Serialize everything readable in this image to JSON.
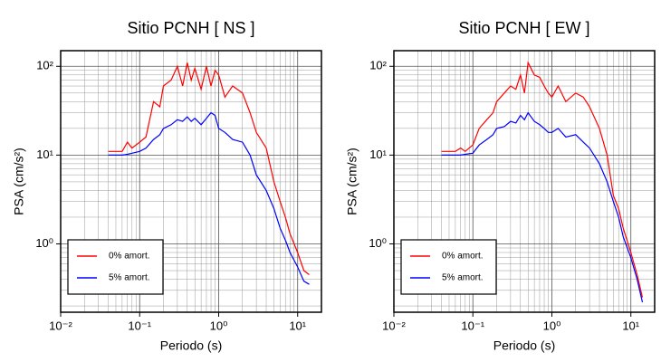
{
  "chart_data": [
    {
      "type": "line",
      "title": "Sitio PCNH [ NS ]",
      "xlabel": "Periodo (s)",
      "ylabel": "PSA (cm/s²)",
      "x": [
        0.04,
        0.05,
        0.06,
        0.07,
        0.08,
        0.1,
        0.12,
        0.15,
        0.18,
        0.2,
        0.25,
        0.3,
        0.35,
        0.4,
        0.45,
        0.5,
        0.6,
        0.7,
        0.8,
        0.9,
        1.0,
        1.2,
        1.5,
        2,
        2.5,
        3,
        4,
        5,
        6,
        7,
        8,
        10,
        12,
        14
      ],
      "series": [
        {
          "name": "0% amort.",
          "color": "#ff0000",
          "values": [
            11,
            11,
            11,
            14,
            12,
            14,
            16,
            40,
            35,
            60,
            70,
            100,
            60,
            110,
            70,
            95,
            55,
            100,
            60,
            90,
            80,
            45,
            60,
            50,
            30,
            18,
            12,
            5,
            3,
            2,
            1.3,
            0.8,
            0.5,
            0.45
          ]
        },
        {
          "name": "5% amort.",
          "color": "#0000ff",
          "values": [
            10,
            10,
            10,
            10.2,
            10.5,
            11,
            12,
            15,
            17,
            20,
            22,
            25,
            24,
            27,
            24,
            26,
            22,
            26,
            30,
            28,
            20,
            18,
            15,
            14,
            10,
            6,
            4,
            2.5,
            1.5,
            1.1,
            0.8,
            0.55,
            0.38,
            0.35
          ]
        }
      ],
      "xlim": [
        0.01,
        20
      ],
      "ylim": [
        0.17,
        150
      ],
      "xlog": true,
      "ylog": true,
      "grid": true,
      "legend": "lower left",
      "xticks": [
        {
          "value": 0.01,
          "label": "10⁻²"
        },
        {
          "value": 0.1,
          "label": "10⁻¹"
        },
        {
          "value": 1,
          "label": "10⁰"
        },
        {
          "value": 10,
          "label": "10¹"
        }
      ],
      "yticks": [
        {
          "value": 1,
          "label": "10⁰"
        },
        {
          "value": 10,
          "label": "10¹"
        },
        {
          "value": 100,
          "label": "10²"
        }
      ]
    },
    {
      "type": "line",
      "title": "Sitio PCNH [ EW ]",
      "xlabel": "Periodo (s)",
      "ylabel": "PSA (cm/s²)",
      "x": [
        0.04,
        0.05,
        0.06,
        0.07,
        0.08,
        0.1,
        0.12,
        0.15,
        0.18,
        0.2,
        0.25,
        0.3,
        0.35,
        0.4,
        0.45,
        0.5,
        0.6,
        0.7,
        0.8,
        0.9,
        1.0,
        1.2,
        1.5,
        2,
        2.5,
        3,
        4,
        5,
        6,
        7,
        8,
        10,
        12,
        14
      ],
      "series": [
        {
          "name": "0% amort.",
          "color": "#ff0000",
          "values": [
            11,
            11,
            11,
            12,
            11,
            13,
            20,
            25,
            30,
            40,
            50,
            60,
            55,
            80,
            50,
            110,
            80,
            75,
            60,
            50,
            45,
            60,
            40,
            50,
            45,
            35,
            20,
            10,
            3.5,
            2.5,
            1.5,
            0.8,
            0.45,
            0.25
          ]
        },
        {
          "name": "5% amort.",
          "color": "#0000ff",
          "values": [
            10,
            10,
            10,
            10,
            10.2,
            10.5,
            13,
            15,
            17,
            20,
            21,
            24,
            23,
            28,
            25,
            30,
            24,
            22,
            20,
            18,
            18,
            20,
            16,
            17,
            14,
            12,
            8,
            5,
            3,
            2,
            1.2,
            0.7,
            0.4,
            0.22
          ]
        }
      ],
      "xlim": [
        0.01,
        20
      ],
      "ylim": [
        0.17,
        150
      ],
      "xlog": true,
      "ylog": true,
      "grid": true,
      "legend": "lower left",
      "xticks": [
        {
          "value": 0.01,
          "label": "10⁻²"
        },
        {
          "value": 0.1,
          "label": "10⁻¹"
        },
        {
          "value": 1,
          "label": "10⁰"
        },
        {
          "value": 10,
          "label": "10¹"
        }
      ],
      "yticks": [
        {
          "value": 1,
          "label": "10⁰"
        },
        {
          "value": 10,
          "label": "10¹"
        },
        {
          "value": 100,
          "label": "10²"
        }
      ]
    }
  ]
}
